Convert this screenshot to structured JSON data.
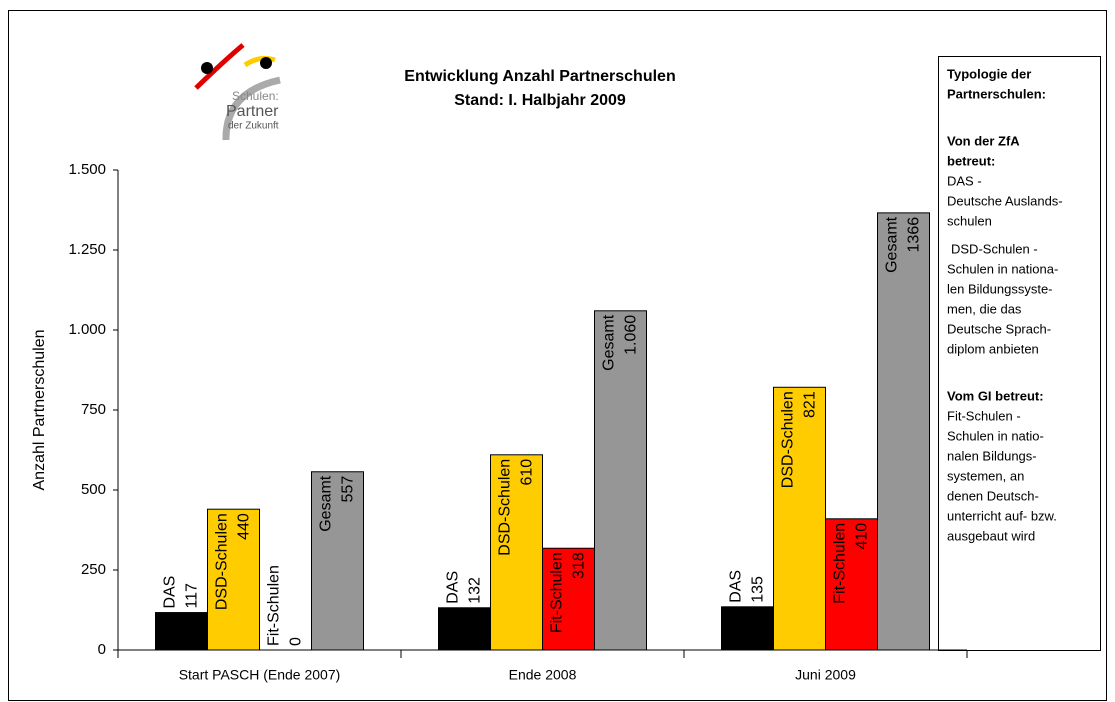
{
  "chart_data": {
    "type": "bar",
    "title": [
      "Entwicklung Anzahl Partnerschulen",
      "Stand: I. Halbjahr 2009"
    ],
    "logo": {
      "lines": [
        "Schulen:",
        "Partner",
        "der Zukunft"
      ]
    },
    "y_label": "Anzahl Partnerschulen",
    "categories": [
      "Start PASCH (Ende 2007)",
      "Ende 2008",
      "Juni 2009"
    ],
    "series": [
      {
        "name": "DAS",
        "color": "#000000",
        "values": [
          117,
          132,
          135
        ]
      },
      {
        "name": "DSD-Schulen",
        "color": "#ffcc00",
        "values": [
          440,
          610,
          821
        ]
      },
      {
        "name": "Fit-Schulen",
        "color": "#ff0000",
        "values": [
          0,
          318,
          410
        ]
      },
      {
        "name": "Gesamt",
        "color": "#969696",
        "values": [
          557,
          1060,
          1366
        ],
        "value_labels": [
          "557",
          "1.060",
          "1366"
        ]
      }
    ],
    "ylim": [
      0,
      1500
    ],
    "yticks": [
      0,
      250,
      500,
      750,
      {
        "value": 1000,
        "label": "1.000"
      },
      {
        "value": 1250,
        "label": "1.250"
      },
      {
        "value": 1500,
        "label": "1.500"
      }
    ],
    "grid": false,
    "sidebar": {
      "title": [
        "Typologie der",
        "Partnerschulen:"
      ],
      "sections": [
        {
          "heading": [
            "Von der ZfA",
            "betreut:"
          ],
          "items": [
            [
              "DAS -",
              "Deutsche Auslands-",
              "schulen"
            ],
            [
              "DSD-Schulen -",
              "Schulen in nationa-",
              "len Bildungssyste-",
              "men, die das",
              "Deutsche Sprach-",
              "diplom anbieten"
            ]
          ]
        },
        {
          "heading": [
            "Vom GI betreut:"
          ],
          "items": [
            [
              "Fit-Schulen -",
              "Schulen in natio-",
              "nalen Bildungs-",
              "systemen, an",
              "denen Deutsch-",
              "unterricht auf- bzw.",
              "ausgebaut wird"
            ]
          ]
        }
      ]
    }
  }
}
